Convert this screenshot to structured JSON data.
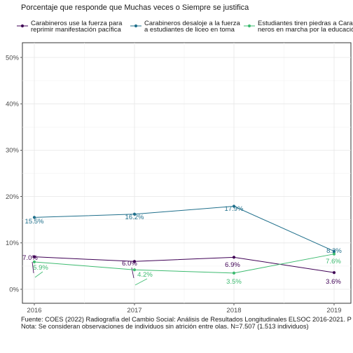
{
  "chart_data": {
    "type": "line",
    "title": "Porcentaje que responde que Muchas veces o Siempre se justifica",
    "x": [
      "2016",
      "2017",
      "2018",
      "2019"
    ],
    "yticks": [
      "0%",
      "10%",
      "20%",
      "30%",
      "40%",
      "50%"
    ],
    "ylim": [
      0,
      0.5
    ],
    "grid": true,
    "legend_position": "top",
    "series": [
      {
        "name_lines": [
          "Carabineros use la fuerza para",
          "reprimir manifestación pacífica"
        ],
        "color": "#3f0055",
        "values": [
          0.07,
          0.06,
          0.069,
          0.036
        ],
        "labels": [
          "7.0%",
          "6.0%",
          "6.9%",
          "3.6%"
        ]
      },
      {
        "name_lines": [
          "Carabineros desaloje a la fuerza",
          "a estudiantes de liceo en toma"
        ],
        "color": "#1f6f8b",
        "values": [
          0.155,
          0.162,
          0.179,
          0.082
        ],
        "labels": [
          "15.5%",
          "16.2%",
          "17.9%",
          "8.2%"
        ]
      },
      {
        "name_lines": [
          "Estudiantes tiren piedras a Carab",
          "neros en marcha por la educación"
        ],
        "color": "#3dbb70",
        "values": [
          0.059,
          0.042,
          0.035,
          0.076
        ],
        "labels": [
          "5.9%",
          "4.2%",
          "3.5%",
          "7.6%"
        ]
      }
    ],
    "caption_lines": [
      "Fuente: COES (2022) Radiografía del Cambio Social: Análisis de Resultados Longitudinales ELSOC 2016-2021. P",
      "Nota: Se consideran observaciones de individuos sin atrición entre olas. N=7.507 (1.513 individuos)"
    ]
  }
}
